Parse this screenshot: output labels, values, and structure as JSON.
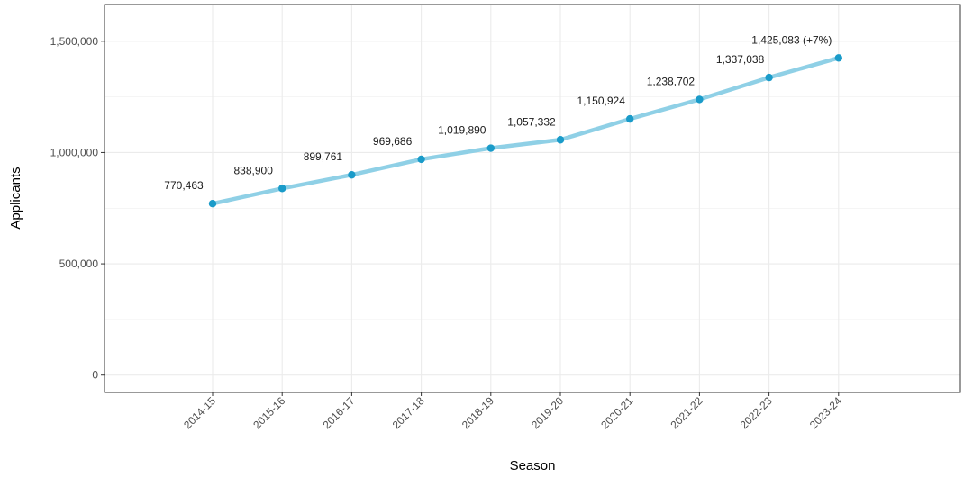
{
  "chart_data": {
    "type": "line",
    "title": "",
    "xlabel": "Season",
    "ylabel": "Applicants",
    "categories": [
      "2014-15",
      "2015-16",
      "2016-17",
      "2017-18",
      "2018-19",
      "2019-20",
      "2020-21",
      "2021-22",
      "2022-23",
      "2023-24"
    ],
    "series": [
      {
        "values": [
          770463,
          838900,
          899761,
          969686,
          1019890,
          1057332,
          1150924,
          1238702,
          1337038,
          1425083
        ],
        "labels": [
          "770,463",
          "838,900",
          "899,761",
          "969,686",
          "1,019,890",
          "1,057,332",
          "1,150,924",
          "1,238,702",
          "1,337,038",
          "1,425,083 (+7%)"
        ],
        "line_color": "#8fd0e6",
        "point_color": "#1a9bc9"
      }
    ],
    "y_ticks": [
      0,
      500000,
      1000000,
      1500000
    ],
    "y_tick_labels": [
      "0",
      "500,000",
      "1,000,000",
      "1,500,000"
    ],
    "ylim": [
      -78000,
      1665000
    ],
    "grid": true,
    "legend": "none",
    "panel_border_color": "#333333",
    "grid_color": "#ebebeb"
  }
}
